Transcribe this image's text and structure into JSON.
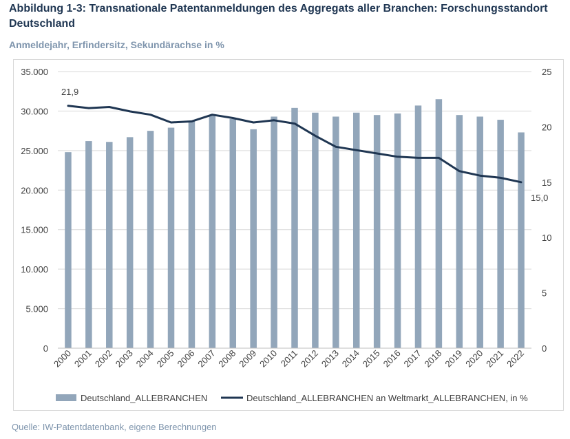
{
  "title": "Abbildung 1-3: Transnationale Patentanmeldungen des Aggregats aller Branchen: Forschungsstandort Deutschland",
  "subtitle": "Anmeldejahr, Erfindersitz, Sekundärachse in %",
  "source": "Quelle: IW-Patentdatenbank, eigene Berechnungen",
  "colors": {
    "bar": "#92a6ba",
    "line": "#1f3652",
    "title": "#1f3652",
    "subtitle": "#7f95ad"
  },
  "chart_data": {
    "type": "bar",
    "categories": [
      "2000",
      "2001",
      "2002",
      "2003",
      "2004",
      "2005",
      "2006",
      "2007",
      "2008",
      "2009",
      "2010",
      "2011",
      "2012",
      "2013",
      "2014",
      "2015",
      "2016",
      "2017",
      "2018",
      "2019",
      "2020",
      "2021",
      "2022"
    ],
    "series": [
      {
        "name": "Deutschland_ALLEBRANCHEN",
        "type": "bar",
        "axis": "primary",
        "values": [
          24800,
          26200,
          26100,
          26700,
          27500,
          27900,
          28700,
          29500,
          29000,
          27700,
          29300,
          30400,
          29800,
          29300,
          29800,
          29500,
          29700,
          30700,
          31500,
          29500,
          29300,
          28900,
          27300
        ]
      },
      {
        "name": "Deutschland_ALLEBRANCHEN an Weltmarkt_ALLEBRANCHEN, in %",
        "type": "line",
        "axis": "secondary",
        "values": [
          21.9,
          21.7,
          21.8,
          21.4,
          21.1,
          20.4,
          20.5,
          21.1,
          20.8,
          20.4,
          20.6,
          20.3,
          19.2,
          18.2,
          17.9,
          17.6,
          17.3,
          17.2,
          17.2,
          16.0,
          15.6,
          15.4,
          15.0
        ]
      }
    ],
    "y_primary": {
      "min": 0,
      "max": 35000,
      "ticks": [
        "0",
        "5.000",
        "10.000",
        "15.000",
        "20.000",
        "25.000",
        "30.000",
        "35.000"
      ]
    },
    "y_secondary": {
      "min": 0,
      "max": 25,
      "ticks": [
        "0",
        "5",
        "10",
        "15",
        "20",
        "25"
      ]
    },
    "annotations": [
      {
        "text": "21,9",
        "series": 1,
        "index": 0
      },
      {
        "text": "15,0",
        "series": 1,
        "index": 22
      }
    ],
    "legend": {
      "placement": "bottom"
    },
    "grid": true
  }
}
